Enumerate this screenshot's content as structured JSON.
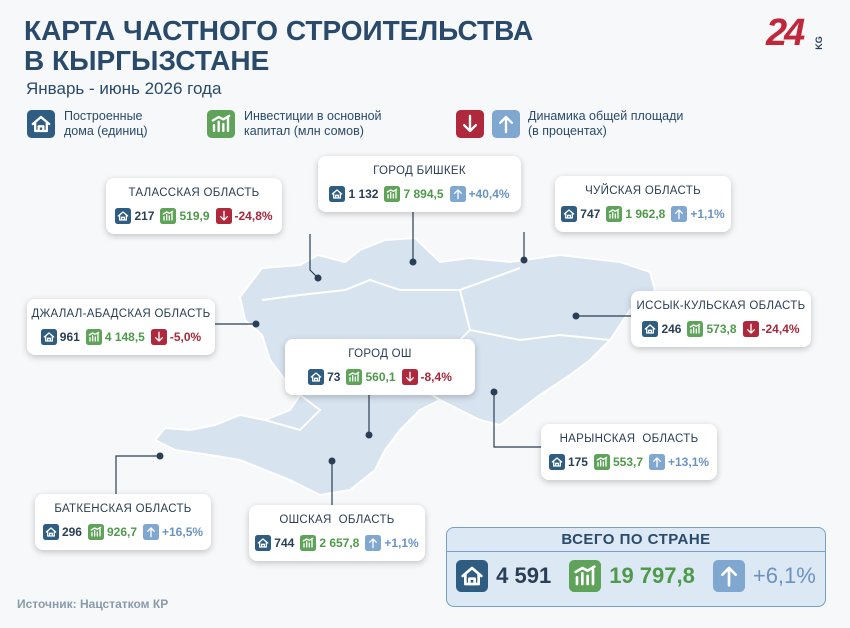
{
  "header": {
    "title_line1": "КАРТА ЧАСТНОГО СТРОИТЕЛЬСТВА",
    "title_line2": "В КЫРГЫЗСТАНЕ",
    "subtitle": "Январь - июнь 2026 года",
    "logo": "24",
    "logo_suffix": "KG"
  },
  "legend": {
    "houses": [
      "Построенные",
      "дома (единиц)"
    ],
    "investment": [
      "Инвестиции в основной",
      "капитал (млн сомов)"
    ],
    "dynamics": [
      "Динамика общей площади",
      "(в процентах)"
    ]
  },
  "regions": [
    {
      "name": "ГОРОД БИШКЕК",
      "houses": "1 132",
      "investment": "7 894,5",
      "change": "+40,4%",
      "trend": "up"
    },
    {
      "name": "ТАЛАССКАЯ ОБЛАСТЬ",
      "houses": "217",
      "investment": "519,9",
      "change": "-24,8%",
      "trend": "down"
    },
    {
      "name": "ЧУЙСКАЯ ОБЛАСТЬ",
      "houses": "747",
      "investment": "1 962,8",
      "change": "+1,1%",
      "trend": "up"
    },
    {
      "name": "ДЖАЛАЛ-АБАДСКАЯ ОБЛАСТЬ",
      "houses": "961",
      "investment": "4 148,5",
      "change": "-5,0%",
      "trend": "down"
    },
    {
      "name": "ИССЫК-КУЛЬСКАЯ ОБЛАСТЬ",
      "houses": "246",
      "investment": "573,8",
      "change": "-24,4%",
      "trend": "down"
    },
    {
      "name": "ГОРОД ОШ",
      "houses": "73",
      "investment": "560,1",
      "change": "-8,4%",
      "trend": "down"
    },
    {
      "name": "НАРЫНСКАЯ  ОБЛАСТЬ",
      "houses": "175",
      "investment": "553,7",
      "change": "+13,1%",
      "trend": "up"
    },
    {
      "name": "БАТКЕНСКАЯ ОБЛАСТЬ",
      "houses": "296",
      "investment": "926,7",
      "change": "+16,5%",
      "trend": "up"
    },
    {
      "name": "ОШСКАЯ  ОБЛАСТЬ",
      "houses": "744",
      "investment": "2 657,8",
      "change": "+1,1%",
      "trend": "up"
    }
  ],
  "total": {
    "title": "ВСЕГО ПО СТРАНЕ",
    "houses": "4 591",
    "investment": "19 797,8",
    "change": "+6,1%",
    "trend": "up"
  },
  "source": "Источник: Нацстатком КР"
}
